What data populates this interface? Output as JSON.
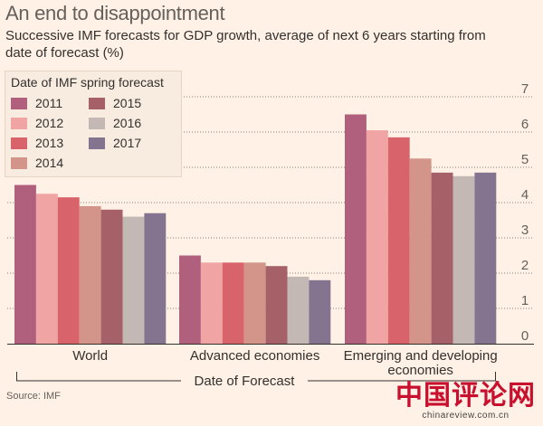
{
  "title": "An end to disappointment",
  "subtitle": "Successive IMF forecasts for GDP growth, average of next 6 years starting from date of forecast (%)",
  "source": "Source: IMF",
  "watermark": {
    "logo": "中国评论网",
    "url": "chinareview.com.cn"
  },
  "colors": {
    "background": "#fff1e5",
    "gridline": "#33302e"
  },
  "chart_data": {
    "type": "bar",
    "categories": [
      "World",
      "Advanced economies",
      "Emerging and developing economies"
    ],
    "xlabel": "Date of Forecast",
    "ylabel": "",
    "ylim": [
      0,
      7
    ],
    "yticks": [
      0,
      1,
      2,
      3,
      4,
      5,
      6,
      7
    ],
    "grid": true,
    "legend_title": "Date of IMF spring forecast",
    "legend_position": "top-left",
    "series": [
      {
        "name": "2011",
        "color": "#b0607c",
        "values": [
          4.5,
          2.5,
          6.5
        ]
      },
      {
        "name": "2012",
        "color": "#f0a4a4",
        "values": [
          4.25,
          2.3,
          6.05
        ]
      },
      {
        "name": "2013",
        "color": "#d9636a",
        "values": [
          4.15,
          2.3,
          5.85
        ]
      },
      {
        "name": "2014",
        "color": "#d3958a",
        "values": [
          3.9,
          2.3,
          5.25
        ]
      },
      {
        "name": "2015",
        "color": "#a56068",
        "values": [
          3.8,
          2.2,
          4.85
        ]
      },
      {
        "name": "2016",
        "color": "#c4b8b5",
        "values": [
          3.6,
          1.9,
          4.75
        ]
      },
      {
        "name": "2017",
        "color": "#85748f",
        "values": [
          3.7,
          1.8,
          4.85
        ]
      }
    ]
  }
}
